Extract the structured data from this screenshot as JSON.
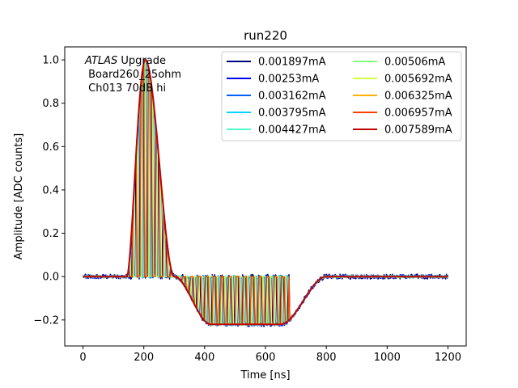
{
  "chart_data": {
    "type": "line",
    "title": "run220",
    "xlabel": "Time [ns]",
    "ylabel": "Amplitude [ADC counts]",
    "xlim": [
      -60,
      1260
    ],
    "ylim": [
      -0.32,
      1.06
    ],
    "xticks": [
      0,
      200,
      400,
      600,
      800,
      1000,
      1200
    ],
    "yticks": [
      -0.2,
      0.0,
      0.2,
      0.4,
      0.6,
      0.8,
      1.0
    ],
    "xtick_labels": [
      "0",
      "200",
      "400",
      "600",
      "800",
      "1000",
      "1200"
    ],
    "ytick_labels": [
      "−0.2",
      "0.0",
      "0.2",
      "0.4",
      "0.6",
      "0.8",
      "1.0"
    ],
    "grid": false,
    "legend_position": "top-right",
    "legend_columns": 2,
    "annotation": {
      "italic_part": "ATLAS",
      "rest_of_line1": " Upgrade",
      "line2": " Board260_25ohm",
      "line3": " Ch013 70dB hi"
    },
    "pulse_shape": {
      "baseline": 0.0,
      "rise_start_ns": 145,
      "peak_ns": 205,
      "peak_value": 1.0,
      "zero_cross_ns": 300,
      "undershoot_min": -0.22,
      "undershoot_flat_from_ns": 420,
      "undershoot_flat_to_ns": 650,
      "return_end_ns": 800,
      "x_end_ns": 1200
    },
    "series": [
      {
        "name": "0.001897mA",
        "color": "#00007f",
        "noise": 0.012,
        "z": 0
      },
      {
        "name": "0.00253mA",
        "color": "#0000ff",
        "noise": 0.009,
        "z": 1
      },
      {
        "name": "0.003162mA",
        "color": "#0063ff",
        "noise": 0.007,
        "z": 2
      },
      {
        "name": "0.003795mA",
        "color": "#00d4ff",
        "noise": 0.006,
        "z": 3
      },
      {
        "name": "0.004427mA",
        "color": "#4dffc9",
        "noise": 0.005,
        "z": 4
      },
      {
        "name": "0.00506mA",
        "color": "#80ff80",
        "noise": 0.004,
        "z": 5
      },
      {
        "name": "0.005692mA",
        "color": "#d4ff40",
        "noise": 0.004,
        "z": 6
      },
      {
        "name": "0.006325mA",
        "color": "#ffb000",
        "noise": 0.003,
        "z": 7
      },
      {
        "name": "0.006957mA",
        "color": "#ff4000",
        "noise": 0.002,
        "z": 8
      },
      {
        "name": "0.007589mA",
        "color": "#c00000",
        "noise": 0.001,
        "z": 9
      }
    ]
  }
}
